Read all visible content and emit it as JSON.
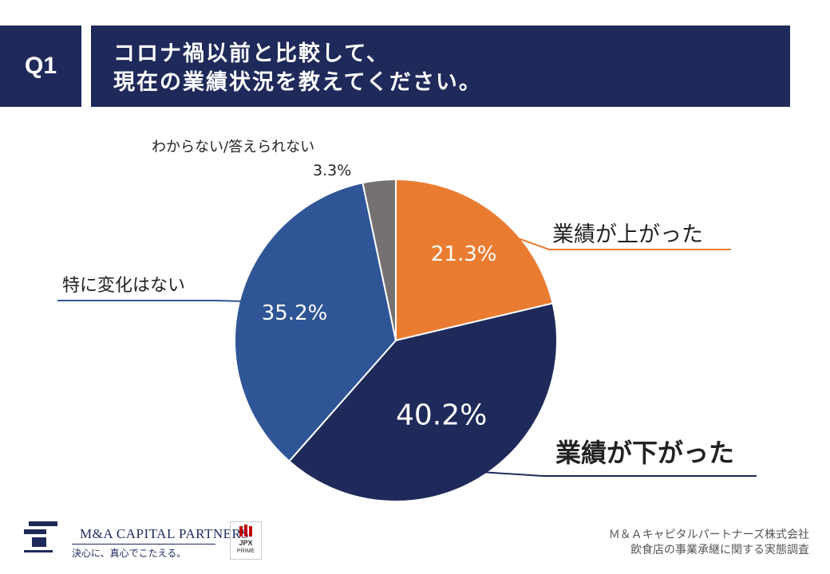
{
  "header": {
    "q_label": "Q1",
    "title_line1": "コロナ禍以前と比較して、",
    "title_line2": "現在の業績状況を教えてください。"
  },
  "chart_data": {
    "type": "pie",
    "title": "コロナ禍以前と比較して、現在の業績状況を教えてください。",
    "slices": [
      {
        "label": "業績が上がった",
        "value": 21.3,
        "value_label": "21.3%",
        "color": "#ea7c31"
      },
      {
        "label": "業績が下がった",
        "value": 40.2,
        "value_label": "40.2%",
        "color": "#1f2a5a"
      },
      {
        "label": "特に変化はない",
        "value": 35.2,
        "value_label": "35.2%",
        "color": "#2f5597"
      },
      {
        "label": "わからない/答えられない",
        "value": 3.3,
        "value_label": "3.3%",
        "color": "#767171"
      }
    ]
  },
  "footer": {
    "logo_name": "M&A CAPITAL PARTNERS",
    "logo_tagline": "決心に、真心でこたえる。",
    "jpx_top": "JPX",
    "jpx_bottom": "PRIME",
    "company_line1": "Ｍ＆Ａキャピタルパートナーズ株式会社",
    "company_line2": "飲食店の事業承継に関する実態調査"
  },
  "colors": {
    "navy": "#1f2a5a",
    "orange": "#ea7c31",
    "blue": "#2f5597",
    "gray": "#767171"
  }
}
